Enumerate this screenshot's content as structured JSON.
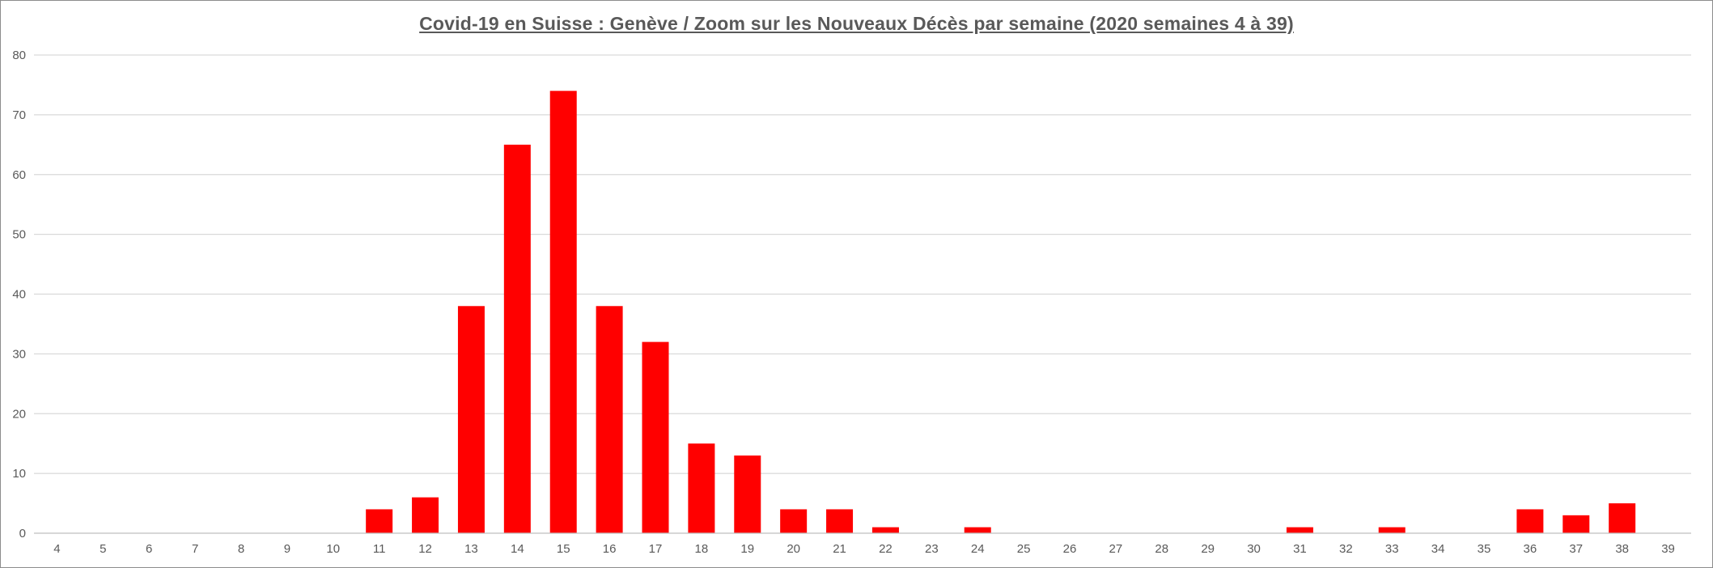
{
  "chart_data": {
    "type": "bar",
    "title": "Covid-19 en Suisse : Genève / Zoom sur les Nouveaux Décès par semaine (2020 semaines 4 à 39)",
    "xlabel": "",
    "ylabel": "",
    "categories": [
      "4",
      "5",
      "6",
      "7",
      "8",
      "9",
      "10",
      "11",
      "12",
      "13",
      "14",
      "15",
      "16",
      "17",
      "18",
      "19",
      "20",
      "21",
      "22",
      "23",
      "24",
      "25",
      "26",
      "27",
      "28",
      "29",
      "30",
      "31",
      "32",
      "33",
      "34",
      "35",
      "36",
      "37",
      "38",
      "39"
    ],
    "values": [
      0,
      0,
      0,
      0,
      0,
      0,
      0,
      4,
      6,
      38,
      65,
      74,
      38,
      32,
      15,
      13,
      4,
      4,
      1,
      0,
      1,
      0,
      0,
      0,
      0,
      0,
      0,
      1,
      0,
      1,
      0,
      0,
      4,
      3,
      5,
      0
    ],
    "ylim": [
      0,
      80
    ],
    "yticks": [
      0,
      10,
      20,
      30,
      40,
      50,
      60,
      70,
      80
    ],
    "grid": true,
    "legend": "none",
    "bar_color": "#ff0000"
  }
}
